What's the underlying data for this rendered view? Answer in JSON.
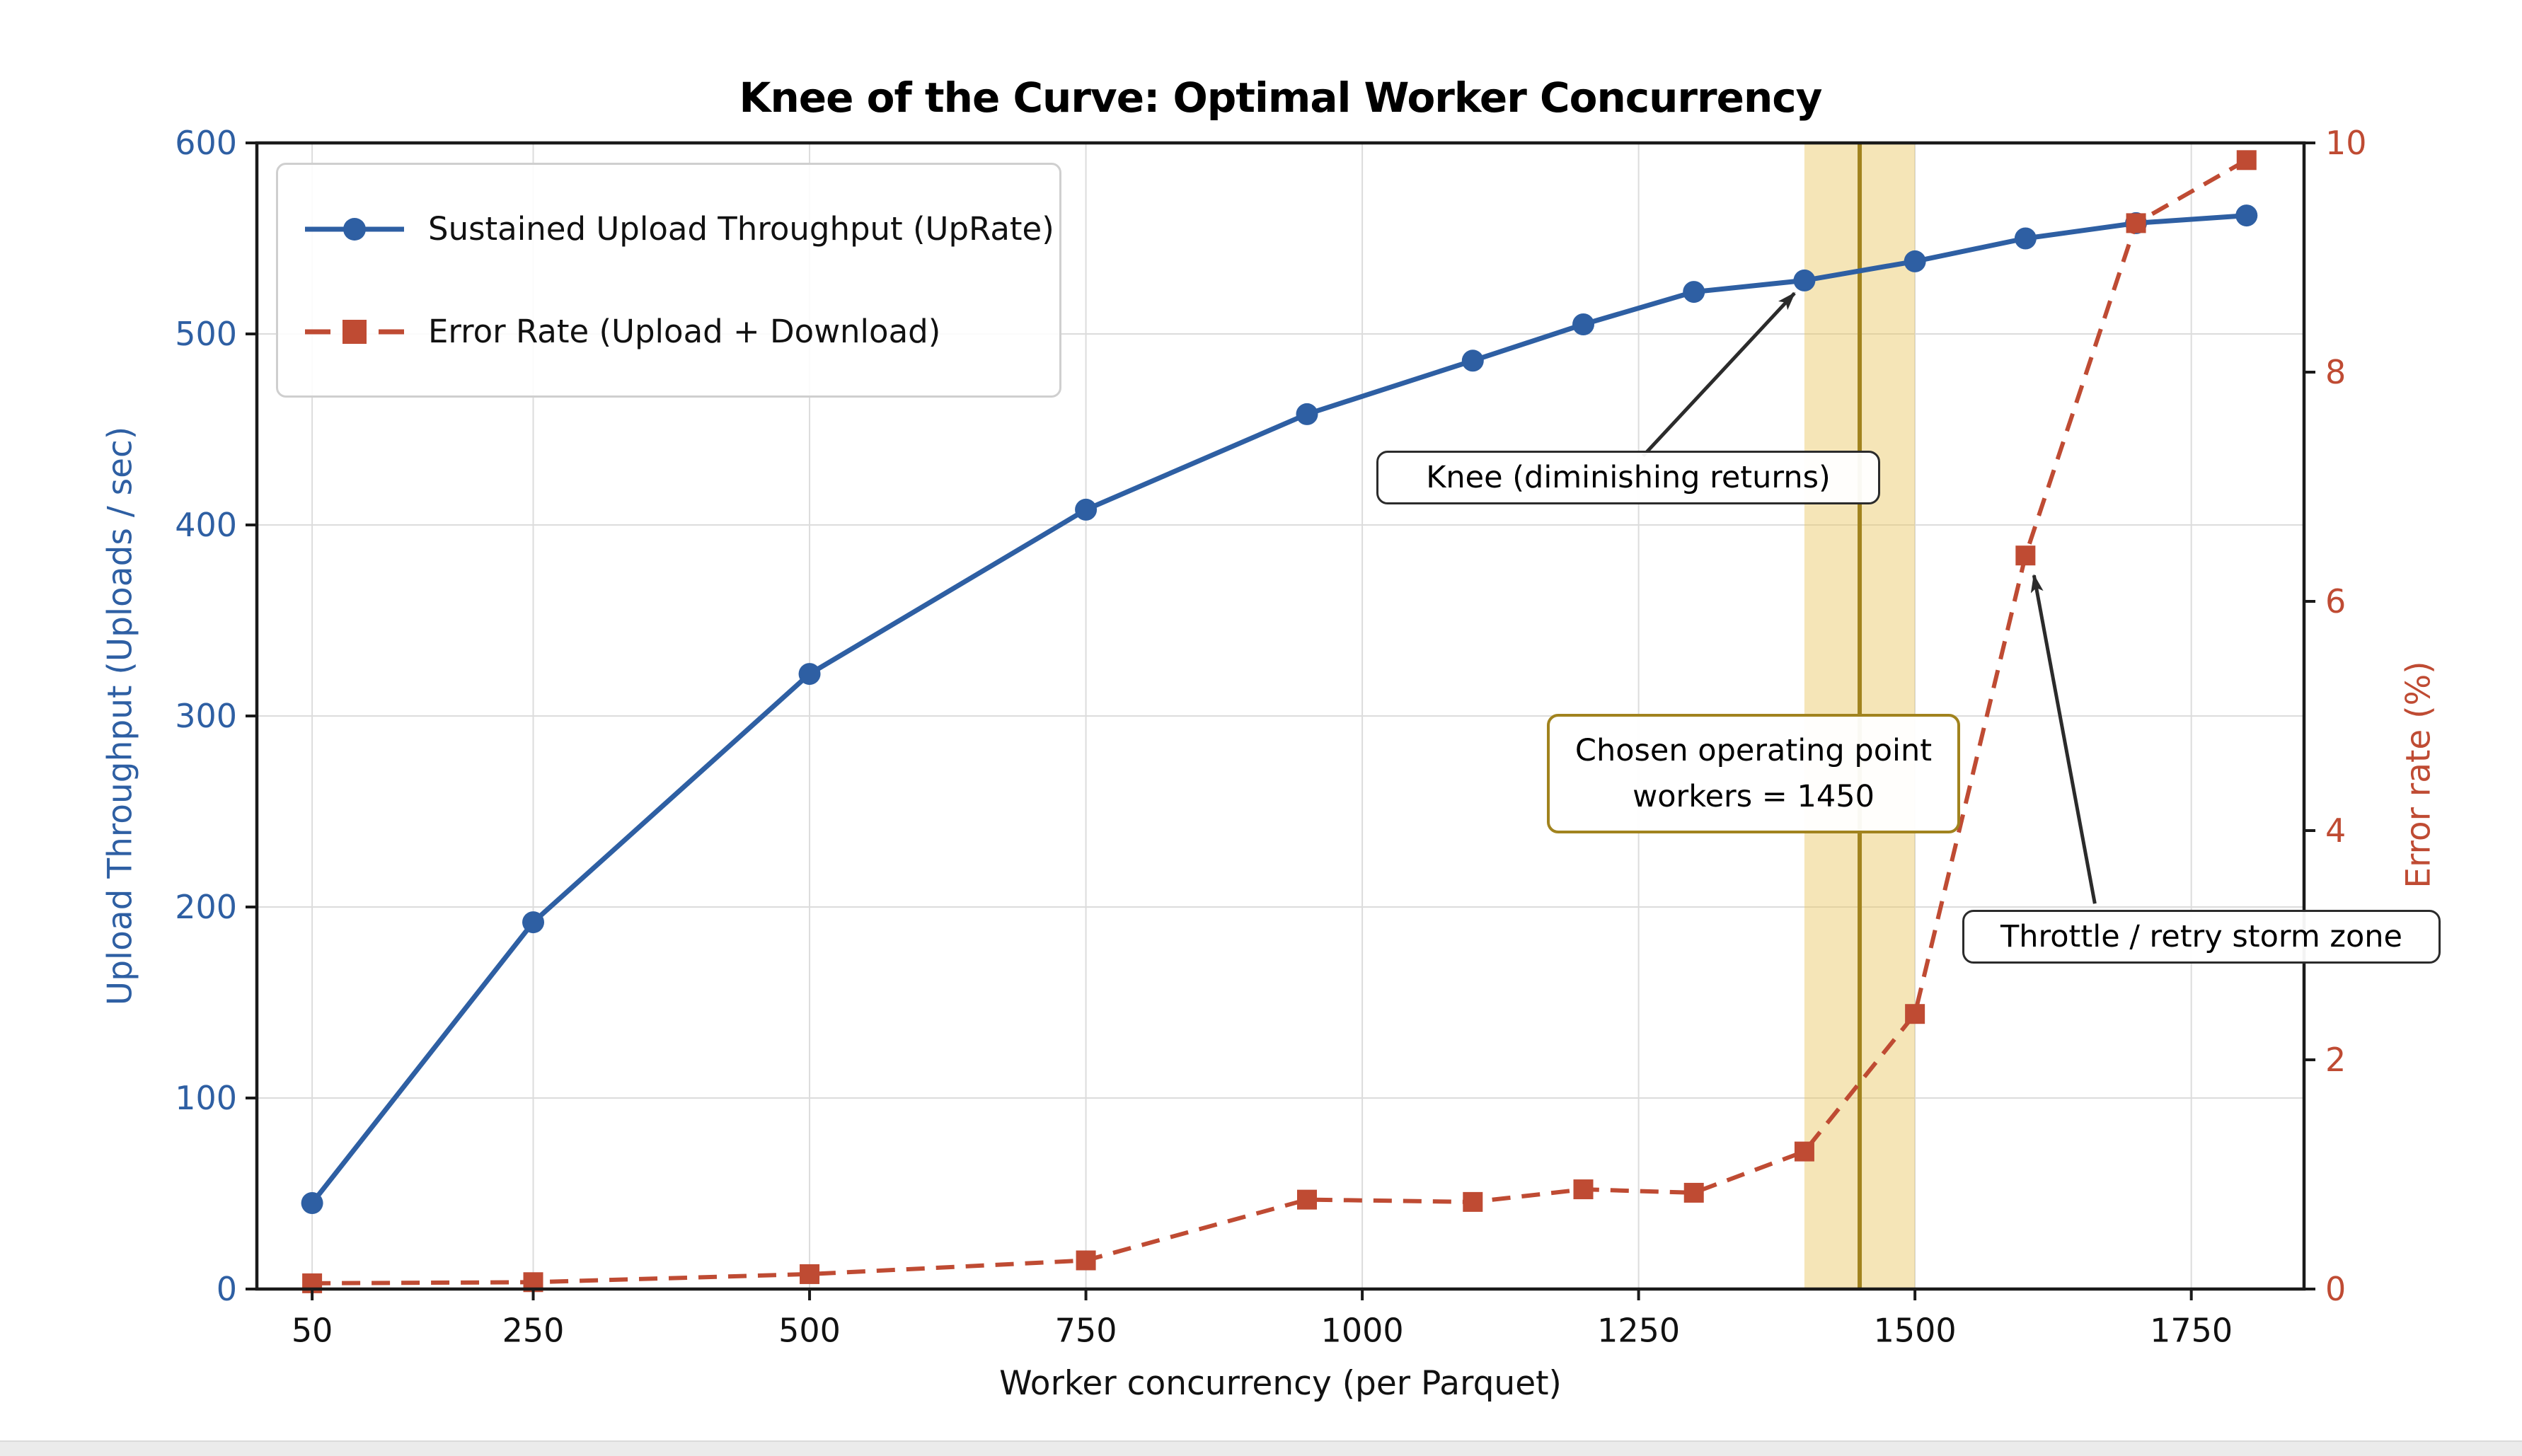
{
  "title": "Knee of the Curve: Optimal Worker Concurrency",
  "colors": {
    "throughput_blue": "#2e5fa3",
    "error_red": "#bf4b33",
    "band_fill": "#e9c55f",
    "band_line": "#a1831e",
    "grid": "#dcdcdc",
    "spine": "#1a1a1a",
    "arrow": "#2b2b2b"
  },
  "chart_data": {
    "type": "line",
    "title": "Knee of the Curve: Optimal Worker Concurrency",
    "xlabel": "Worker concurrency (per Parquet)",
    "ylabel_left": "Upload Throughput (Uploads / sec)",
    "ylabel_right": "Error rate (%)",
    "grid": true,
    "legend_position": "upper left",
    "xlim": [
      0,
      1852
    ],
    "ylim_left": [
      0,
      600
    ],
    "ylim_right": [
      0,
      10
    ],
    "x_ticks": [
      50,
      250,
      500,
      750,
      1000,
      1250,
      1500,
      1750
    ],
    "left_ticks": [
      0,
      100,
      200,
      300,
      400,
      500,
      600
    ],
    "right_ticks": [
      0,
      2,
      4,
      6,
      8,
      10
    ],
    "x": [
      50,
      250,
      500,
      750,
      950,
      1100,
      1200,
      1300,
      1400,
      1500,
      1600,
      1700,
      1800
    ],
    "series": [
      {
        "name": "Sustained Upload Throughput (UpRate)",
        "axis": "left",
        "style": "solid-circle",
        "color": "#2e5fa3",
        "values": [
          45,
          192,
          322,
          408,
          458,
          486,
          505,
          522,
          528,
          538,
          550,
          558,
          562
        ]
      },
      {
        "name": "Error Rate (Upload + Download)",
        "axis": "right",
        "style": "dashed-square",
        "color": "#bf4b33",
        "values": [
          0.05,
          0.06,
          0.13,
          0.25,
          0.78,
          0.76,
          0.87,
          0.84,
          1.2,
          2.4,
          6.4,
          9.3,
          9.85
        ]
      }
    ],
    "band": {
      "x0": 1400,
      "x1": 1500,
      "line_x": 1450
    },
    "annotations": [
      {
        "id": "knee",
        "text": "Knee (diminishing returns)",
        "target_x": 1400,
        "target_y_left": 528
      },
      {
        "id": "chosen",
        "line1": "Chosen operating point",
        "line2": "workers = 1450"
      },
      {
        "id": "throttle",
        "text": "Throttle / retry storm zone",
        "target_x": 1600,
        "target_y_right": 6.4
      }
    ]
  }
}
